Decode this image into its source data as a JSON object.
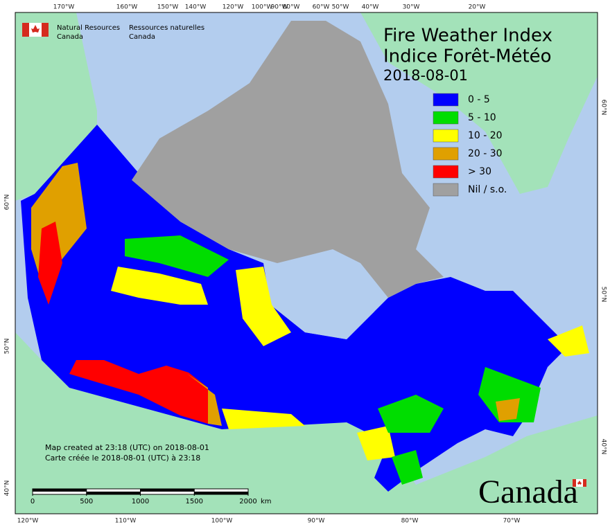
{
  "title": [
    "Fire Weather Index",
    "Indice Forêt-Météo"
  ],
  "date": "2018-08-01",
  "agency": {
    "en": [
      "Natural Resources",
      "Canada"
    ],
    "fr": [
      "Ressources naturelles",
      "Canada"
    ]
  },
  "legend": [
    {
      "label": "0 - 5",
      "color": "#0000ff"
    },
    {
      "label": "5 - 10",
      "color": "#00dd00"
    },
    {
      "label": "10 - 20",
      "color": "#ffff00"
    },
    {
      "label": "20 - 30",
      "color": "#e0a000"
    },
    {
      "label": "> 30",
      "color": "#ff0000"
    },
    {
      "label": "Nil / s.o.",
      "color": "#a0a0a0"
    }
  ],
  "graticule": {
    "top": [
      "170°W",
      "160°W",
      "150°W",
      "140°W",
      "120°W",
      "100°W",
      "90°W",
      "80°W",
      "60°W",
      "50°W",
      "40°W",
      "30°W",
      "20°W"
    ],
    "bottom": [
      "120°W",
      "110°W",
      "100°W",
      "90°W",
      "80°W",
      "70°W"
    ],
    "left": [
      "60°N",
      "50°N",
      "40°N"
    ],
    "right": [
      "60°N",
      "50°N",
      "40°N"
    ]
  },
  "scale": {
    "ticks": [
      0,
      500,
      1000,
      1500,
      2000
    ],
    "unit": "km"
  },
  "credits": [
    "Map created at 23:18 (UTC) on 2018-08-01",
    "Carte créée le 2018-08-01 (UTC) à 23:18"
  ],
  "wordmark": "Canada"
}
